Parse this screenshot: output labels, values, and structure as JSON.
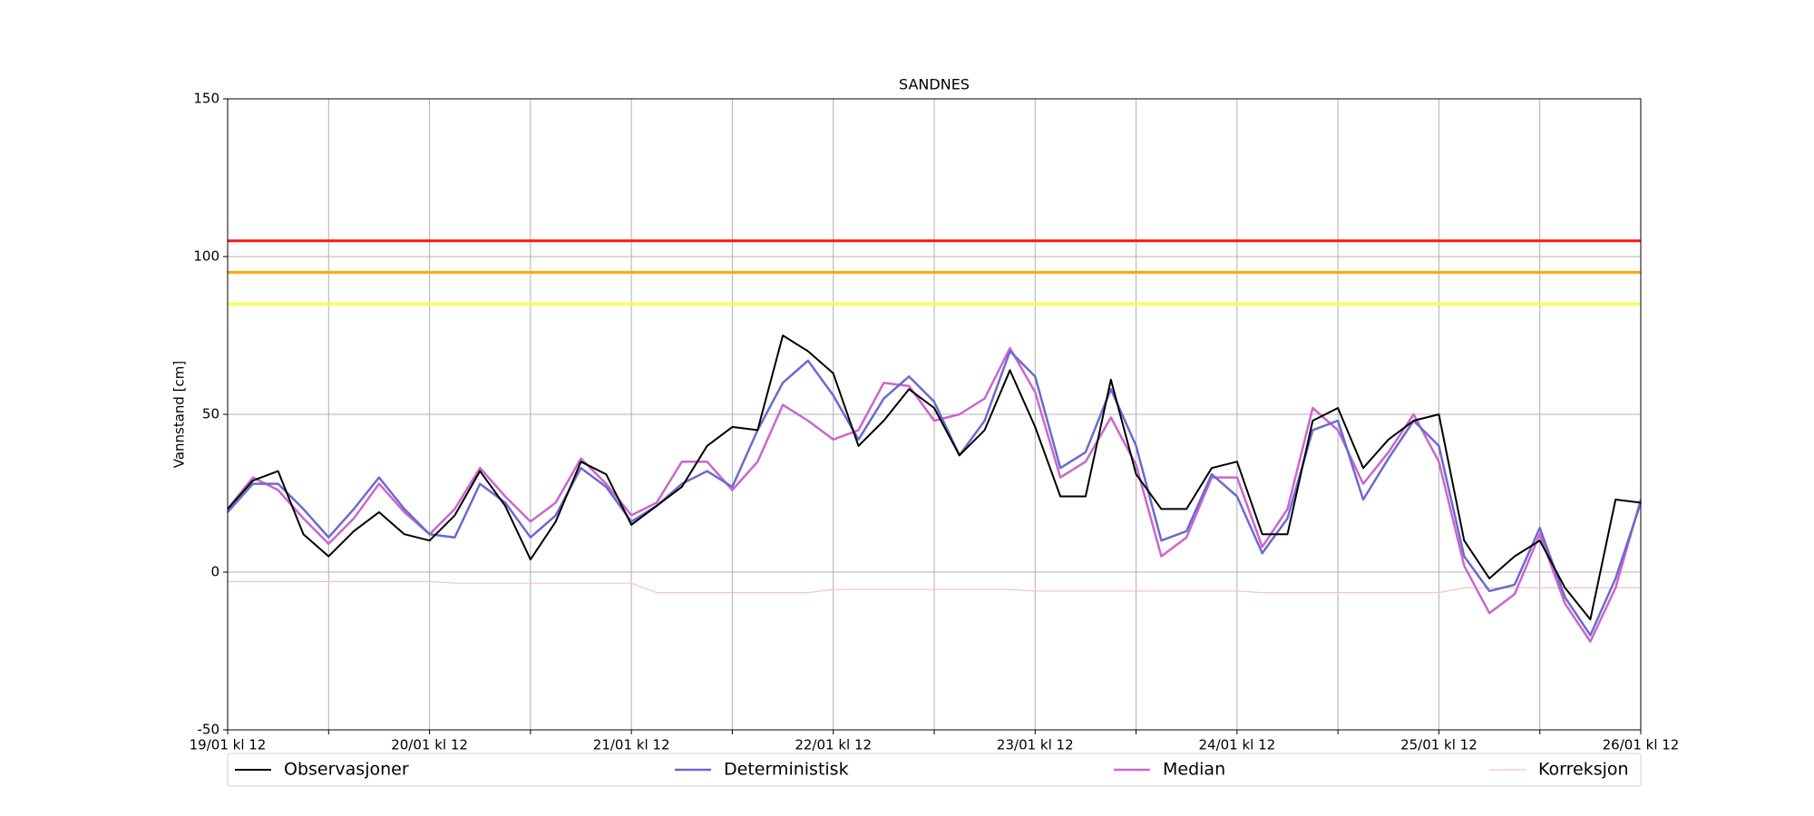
{
  "chart_data": {
    "type": "line",
    "title": "SANDNES",
    "y_label": "Vannstand [cm]",
    "x": [
      0,
      3,
      6,
      9,
      12,
      15,
      18,
      21,
      24,
      27,
      30,
      33,
      36,
      39,
      42,
      45,
      48,
      51,
      54,
      57,
      60,
      63,
      66,
      69,
      72,
      75,
      78,
      81,
      84,
      87,
      90,
      93,
      96,
      99,
      102,
      105,
      108,
      111,
      114,
      117,
      120,
      123,
      126,
      129,
      132,
      135,
      138,
      141,
      144,
      147,
      150,
      153,
      156,
      159,
      162,
      165,
      168
    ],
    "series": [
      {
        "name": "Observasjoner",
        "color": "#000000",
        "width": 2,
        "values": [
          20,
          29,
          32,
          12,
          5,
          13,
          19,
          12,
          10,
          18,
          32,
          21,
          4,
          16,
          35,
          31,
          15,
          21,
          27,
          40,
          46,
          45,
          75,
          70,
          63,
          40,
          48,
          58,
          52,
          37,
          45,
          64,
          46,
          24,
          24,
          61,
          31,
          20,
          20,
          33,
          35,
          12,
          12,
          48,
          52,
          33,
          42,
          48,
          50,
          10,
          -2,
          5,
          10,
          -5,
          -15,
          23,
          22
        ]
      },
      {
        "name": "Deterministisk",
        "color": "#6a6ad0",
        "width": 2.5,
        "values": [
          19,
          28,
          28,
          20,
          11,
          20,
          30,
          20,
          12,
          11,
          28,
          22,
          11,
          18,
          33,
          27,
          16,
          21,
          28,
          32,
          27,
          45,
          60,
          67,
          56,
          42,
          55,
          62,
          54,
          37,
          48,
          70,
          62,
          33,
          38,
          58,
          40,
          10,
          13,
          31,
          24,
          6,
          17,
          45,
          48,
          23,
          36,
          48,
          40,
          5,
          -6,
          -4,
          14,
          -8,
          -20,
          -2,
          22
        ]
      },
      {
        "name": "Median",
        "color": "#cc66cc",
        "width": 2.5,
        "values": [
          20,
          30,
          26,
          17,
          9,
          17,
          28,
          19,
          12,
          20,
          33,
          24,
          16,
          22,
          36,
          28,
          18,
          22,
          35,
          35,
          26,
          35,
          53,
          48,
          42,
          45,
          60,
          59,
          48,
          50,
          55,
          71,
          57,
          30,
          35,
          49,
          34,
          5,
          11,
          30,
          30,
          8,
          20,
          52,
          45,
          28,
          38,
          50,
          35,
          2,
          -13,
          -7,
          12,
          -10,
          -22,
          -5,
          23
        ]
      },
      {
        "name": "Korreksjon",
        "color": "#f2c4cb",
        "width": 1.2,
        "values": [
          -3,
          -3,
          -3,
          -3,
          -3,
          -3,
          -3,
          -3,
          -3,
          -3.5,
          -3.5,
          -3.5,
          -3.5,
          -3.5,
          -3.5,
          -3.5,
          -3.5,
          -6.5,
          -6.5,
          -6.5,
          -6.5,
          -6.5,
          -6.5,
          -6.5,
          -5.5,
          -5.5,
          -5.5,
          -5.5,
          -5.5,
          -5.5,
          -5.5,
          -5.5,
          -6,
          -6,
          -6,
          -6,
          -6,
          -6,
          -6,
          -6,
          -6,
          -6.5,
          -6.5,
          -6.5,
          -6.5,
          -6.5,
          -6.5,
          -6.5,
          -6.5,
          -5,
          -5,
          -5,
          -5,
          -5,
          -5,
          -5,
          -5
        ]
      }
    ],
    "thresholds": [
      {
        "value": 105,
        "color": "#ff1a1a"
      },
      {
        "value": 95,
        "color": "#ffa500"
      },
      {
        "value": 85,
        "color": "#ffff33"
      }
    ],
    "xlim": [
      0,
      168
    ],
    "xticks": [
      {
        "value": 0,
        "label": "19/01 kl 12"
      },
      {
        "value": 24,
        "label": "20/01 kl 12"
      },
      {
        "value": 48,
        "label": "21/01 kl 12"
      },
      {
        "value": 72,
        "label": "22/01 kl 12"
      },
      {
        "value": 96,
        "label": "23/01 kl 12"
      },
      {
        "value": 120,
        "label": "24/01 kl 12"
      },
      {
        "value": 144,
        "label": "25/01 kl 12"
      },
      {
        "value": 168,
        "label": "26/01 kl 12"
      }
    ],
    "xminorticks": [
      12,
      36,
      60,
      84,
      108,
      132,
      156
    ],
    "ylim": [
      -50,
      150
    ],
    "yticks": [
      -50,
      0,
      50,
      100,
      150
    ],
    "grid": true,
    "legend": "bottom"
  }
}
